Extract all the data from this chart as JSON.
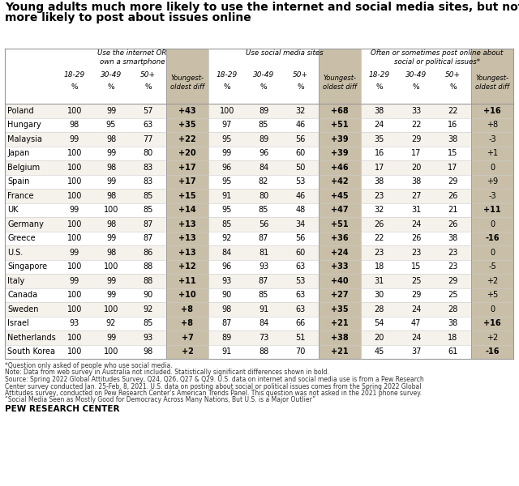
{
  "title_line1": "Young adults much more likely to use the internet and social media sites, but not",
  "title_line2": "more likely to post about issues online",
  "section_headers": [
    "Use the internet OR\nown a smartphone",
    "Use social media sites",
    "Often or sometimes post online about\nsocial or political issues*"
  ],
  "countries": [
    "Poland",
    "Hungary",
    "Malaysia",
    "Japan",
    "Belgium",
    "Spain",
    "France",
    "UK",
    "Germany",
    "Greece",
    "U.S.",
    "Singapore",
    "Italy",
    "Canada",
    "Sweden",
    "Israel",
    "Netherlands",
    "South Korea"
  ],
  "internet_data": [
    [
      100,
      99,
      57,
      "+43"
    ],
    [
      98,
      95,
      63,
      "+35"
    ],
    [
      99,
      98,
      77,
      "+22"
    ],
    [
      100,
      99,
      80,
      "+20"
    ],
    [
      100,
      98,
      83,
      "+17"
    ],
    [
      100,
      99,
      83,
      "+17"
    ],
    [
      100,
      98,
      85,
      "+15"
    ],
    [
      99,
      100,
      85,
      "+14"
    ],
    [
      100,
      98,
      87,
      "+13"
    ],
    [
      100,
      99,
      87,
      "+13"
    ],
    [
      99,
      98,
      86,
      "+13"
    ],
    [
      100,
      100,
      88,
      "+12"
    ],
    [
      99,
      99,
      88,
      "+11"
    ],
    [
      100,
      99,
      90,
      "+10"
    ],
    [
      100,
      100,
      92,
      "+8"
    ],
    [
      93,
      92,
      85,
      "+8"
    ],
    [
      100,
      99,
      93,
      "+7"
    ],
    [
      100,
      100,
      98,
      "+2"
    ]
  ],
  "social_data": [
    [
      100,
      89,
      32,
      "+68"
    ],
    [
      97,
      85,
      46,
      "+51"
    ],
    [
      95,
      89,
      56,
      "+39"
    ],
    [
      99,
      96,
      60,
      "+39"
    ],
    [
      96,
      84,
      50,
      "+46"
    ],
    [
      95,
      82,
      53,
      "+42"
    ],
    [
      91,
      80,
      46,
      "+45"
    ],
    [
      95,
      85,
      48,
      "+47"
    ],
    [
      85,
      56,
      34,
      "+51"
    ],
    [
      92,
      87,
      56,
      "+36"
    ],
    [
      84,
      81,
      60,
      "+24"
    ],
    [
      96,
      93,
      63,
      "+33"
    ],
    [
      93,
      87,
      53,
      "+40"
    ],
    [
      90,
      85,
      63,
      "+27"
    ],
    [
      98,
      91,
      63,
      "+35"
    ],
    [
      87,
      84,
      66,
      "+21"
    ],
    [
      89,
      73,
      51,
      "+38"
    ],
    [
      91,
      88,
      70,
      "+21"
    ]
  ],
  "post_data": [
    [
      38,
      33,
      22,
      "+16"
    ],
    [
      24,
      22,
      16,
      "+8"
    ],
    [
      35,
      29,
      38,
      "-3"
    ],
    [
      16,
      17,
      15,
      "+1"
    ],
    [
      17,
      20,
      17,
      "0"
    ],
    [
      38,
      38,
      29,
      "+9"
    ],
    [
      23,
      27,
      26,
      "-3"
    ],
    [
      32,
      31,
      21,
      "+11"
    ],
    [
      26,
      24,
      26,
      "0"
    ],
    [
      22,
      26,
      38,
      "-16"
    ],
    [
      23,
      23,
      23,
      "0"
    ],
    [
      18,
      15,
      23,
      "-5"
    ],
    [
      31,
      25,
      29,
      "+2"
    ],
    [
      30,
      29,
      25,
      "+5"
    ],
    [
      28,
      24,
      28,
      "0"
    ],
    [
      54,
      47,
      38,
      "+16"
    ],
    [
      20,
      24,
      18,
      "+2"
    ],
    [
      45,
      37,
      61,
      "-16"
    ]
  ],
  "bold_diff_internet": [
    true,
    true,
    true,
    true,
    true,
    true,
    true,
    true,
    true,
    true,
    true,
    true,
    true,
    true,
    true,
    true,
    true,
    true
  ],
  "bold_diff_social": [
    true,
    true,
    true,
    true,
    true,
    true,
    true,
    true,
    true,
    true,
    true,
    true,
    true,
    true,
    true,
    true,
    true,
    true
  ],
  "bold_diff_post": [
    true,
    false,
    false,
    false,
    false,
    false,
    false,
    true,
    false,
    true,
    false,
    false,
    false,
    false,
    false,
    true,
    false,
    true
  ],
  "footnote1": "*Question only asked of people who use social media.",
  "footnote2": "Note: Data from web survey in Australia not included. Statistically significant differences shown in bold.",
  "footnote3a": "Source: Spring 2022 Global Attitudes Survey, Q24, Q26, Q27 & Q29. U.S. data on internet and social media use is from a Pew Research",
  "footnote3b": "Center survey conducted Jan. 25-Feb. 8, 2021. U.S. data on posting about social or political issues comes from the Spring 2022 Global",
  "footnote3c": "Attitudes survey, conducted on Pew Research Center’s American Trends Panel. This question was not asked in the 2021 phone survey.",
  "footnote3d": "“Social Media Seen as Mostly Good for Democracy Across Many Nations, But U.S. is a Major Outlier”",
  "source_label": "PEW RESEARCH CENTER",
  "diff_col_bg": "#c9bfa8",
  "row_alt_bg": "#f5f1eb",
  "row_bg": "#ffffff"
}
